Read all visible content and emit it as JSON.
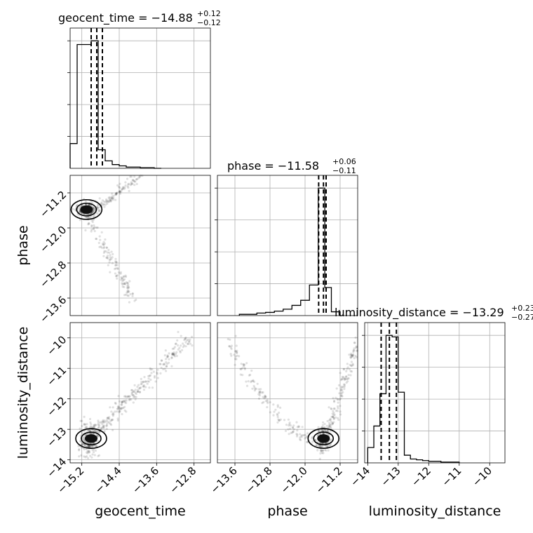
{
  "chart_data": {
    "type": "corner",
    "parameters": [
      {
        "name": "geocent_time",
        "axis_label": "geocent_time",
        "title_prefix": "geocent_time = ",
        "median": "−14.88",
        "plus": "+0.12",
        "minus": "−0.12",
        "range": [
          -15.45,
          -12.45
        ],
        "ticks": [
          -15.2,
          -14.4,
          -13.6,
          -12.8
        ],
        "tick_labels": [
          "−15.2",
          "−14.4",
          "−13.6",
          "−12.8"
        ],
        "quantiles": [
          -15.0,
          -14.88,
          -14.76
        ],
        "histogram": {
          "edges": [
            -15.45,
            -15.3,
            -15.15,
            -15.0,
            -14.85,
            -14.7,
            -14.55,
            -14.4,
            -14.25,
            -14.1,
            -13.95,
            -13.8,
            -13.65,
            -13.5
          ],
          "counts": [
            0.2,
            1.0,
            1.0,
            1.03,
            0.15,
            0.06,
            0.03,
            0.02,
            0.01,
            0.01,
            0.005,
            0.005,
            0.0
          ]
        }
      },
      {
        "name": "phase",
        "axis_label": "phase",
        "title_prefix": "phase = ",
        "median": "−11.58",
        "plus": "+0.06",
        "minus": "−0.11",
        "range": [
          -14.0,
          -10.8
        ],
        "ticks": [
          -13.6,
          -12.8,
          -12.0,
          -11.2
        ],
        "tick_labels": [
          "−13.6",
          "−12.8",
          "−12.0",
          "−11.2"
        ],
        "quantiles": [
          -11.69,
          -11.58,
          -11.52
        ],
        "histogram": {
          "edges": [
            -13.5,
            -13.3,
            -13.1,
            -12.9,
            -12.7,
            -12.5,
            -12.3,
            -12.1,
            -11.9,
            -11.7,
            -11.55,
            -11.4,
            -11.2
          ],
          "counts": [
            0.01,
            0.01,
            0.02,
            0.025,
            0.035,
            0.05,
            0.08,
            0.12,
            0.24,
            1.0,
            0.22,
            0.03
          ]
        }
      },
      {
        "name": "luminosity_distance",
        "axis_label": "luminosity_distance",
        "title_prefix": "luminosity_distance = ",
        "median": "−13.29",
        "plus": "+0.23",
        "minus": "−0.27",
        "range": [
          -14.1,
          -9.5
        ],
        "ticks": [
          -14,
          -13,
          -12,
          -11,
          -10
        ],
        "tick_labels": [
          "−14",
          "−13",
          "−12",
          "−11",
          "−10"
        ],
        "quantiles": [
          -13.56,
          -13.29,
          -13.06
        ],
        "histogram": {
          "edges": [
            -14.0,
            -13.8,
            -13.6,
            -13.4,
            -13.2,
            -13.0,
            -12.8,
            -12.6,
            -12.4,
            -12.2,
            -12.0,
            -11.6,
            -11.0
          ],
          "counts": [
            0.1,
            0.24,
            0.45,
            0.83,
            0.82,
            0.46,
            0.05,
            0.025,
            0.02,
            0.015,
            0.01,
            0.005
          ]
        }
      }
    ],
    "scatter_2d": [
      {
        "x_param": "geocent_time",
        "y_param": "phase",
        "mode_x": -15.1,
        "mode_y": -11.58
      },
      {
        "x_param": "geocent_time",
        "y_param": "luminosity_distance",
        "mode_x": -15.0,
        "mode_y": -13.3
      },
      {
        "x_param": "phase",
        "y_param": "luminosity_distance",
        "mode_x": -11.58,
        "mode_y": -13.3
      }
    ],
    "grid": true,
    "colors": {
      "line": "#000000",
      "grid": "#b0b0b0",
      "points": "#000000"
    }
  }
}
